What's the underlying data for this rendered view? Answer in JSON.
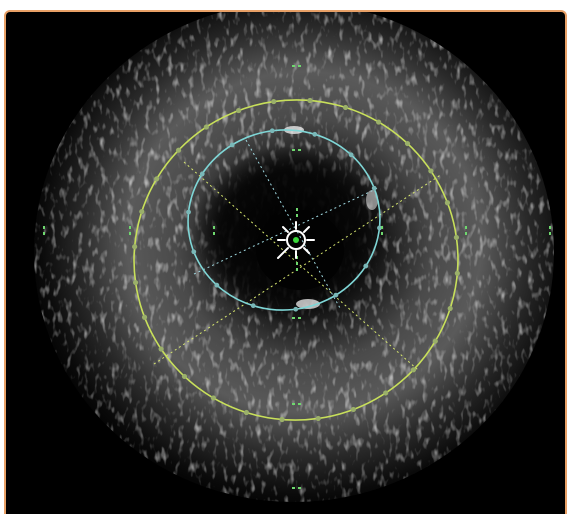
{
  "viewer": {
    "border_color": "#e8a066",
    "background": "#000000",
    "colors": {
      "eem_contour": "#c8e05a",
      "lumen_contour": "#7fd6d6",
      "diameter_line": "#d8e870",
      "lumen_diameter_line": "#9fd8e0",
      "control_point": "#9bb06a",
      "lumen_control_point": "#7ab8b8",
      "scale_tick": "#6ed86e",
      "catheter_icon": "#ffffff"
    },
    "icons": [
      "catheter-center-icon"
    ]
  }
}
